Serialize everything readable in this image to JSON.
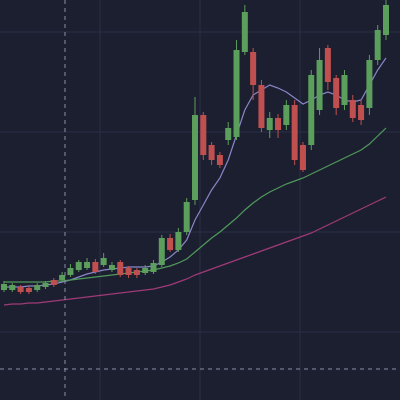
{
  "chart_data": {
    "type": "candlestick",
    "up_color": "#5c9e5c",
    "down_color": "#c0504f",
    "ylim": [
      0,
      400
    ],
    "categories": [
      null,
      null,
      null,
      null,
      null,
      null,
      null,
      null,
      null,
      null,
      null,
      null,
      null,
      null,
      null,
      null,
      null,
      null,
      null,
      null,
      null,
      null,
      null,
      null,
      null,
      null,
      null,
      null,
      null,
      null,
      null,
      null,
      null,
      null,
      null,
      null,
      null,
      null,
      null,
      null,
      null,
      null,
      null,
      null,
      null,
      null,
      null
    ],
    "open": [
      110,
      110,
      113,
      112,
      110,
      113,
      120,
      120,
      125,
      130,
      132,
      138,
      135,
      130,
      138,
      132,
      130,
      127,
      128,
      135,
      162,
      150,
      168,
      200,
      285,
      255,
      245,
      260,
      263,
      348,
      348,
      315,
      270,
      282,
      275,
      295,
      255,
      255,
      290,
      352,
      322,
      295,
      300,
      295,
      292,
      340,
      365
    ],
    "high": [
      119,
      117,
      115,
      114,
      117,
      119,
      122,
      128,
      136,
      140,
      142,
      141,
      147,
      138,
      140,
      134,
      132,
      135,
      140,
      165,
      166,
      172,
      202,
      303,
      288,
      258,
      248,
      278,
      360,
      395,
      352,
      320,
      288,
      286,
      300,
      300,
      258,
      330,
      352,
      355,
      325,
      330,
      305,
      300,
      345,
      375,
      400
    ],
    "low": [
      108,
      108,
      106,
      106,
      108,
      111,
      113,
      118,
      123,
      128,
      130,
      126,
      133,
      128,
      123,
      122,
      122,
      125,
      126,
      133,
      148,
      148,
      165,
      195,
      240,
      235,
      232,
      255,
      260,
      345,
      300,
      268,
      262,
      262,
      270,
      235,
      228,
      250,
      285,
      310,
      285,
      290,
      278,
      275,
      285,
      335,
      360
    ],
    "close": [
      116,
      115,
      108,
      108,
      115,
      117,
      115,
      125,
      132,
      138,
      138,
      128,
      142,
      135,
      125,
      125,
      125,
      132,
      137,
      162,
      150,
      168,
      198,
      285,
      245,
      240,
      235,
      272,
      350,
      388,
      315,
      272,
      282,
      270,
      295,
      240,
      230,
      325,
      340,
      318,
      292,
      325,
      282,
      280,
      340,
      370,
      395
    ],
    "lines": [
      {
        "color": "#8a86c8",
        "values": [
          113,
          113,
          113,
          114,
          114,
          115,
          116,
          118,
          120,
          123,
          126,
          128,
          130,
          131,
          132,
          133,
          133,
          133,
          134,
          138,
          143,
          150,
          160,
          180,
          195,
          210,
          222,
          240,
          265,
          290,
          305,
          310,
          315,
          312,
          308,
          302,
          296,
          300,
          305,
          308,
          305,
          300,
          298,
          300,
          315,
          330,
          342
        ]
      },
      {
        "color": "#4f9a5a",
        "values": [
          118,
          118,
          118,
          118,
          118,
          118,
          119,
          119,
          120,
          121,
          122,
          123,
          124,
          125,
          126,
          127,
          128,
          129,
          130,
          132,
          134,
          137,
          141,
          148,
          155,
          162,
          168,
          175,
          182,
          190,
          197,
          203,
          208,
          212,
          216,
          219,
          222,
          226,
          230,
          234,
          238,
          242,
          246,
          250,
          256,
          264,
          272
        ]
      },
      {
        "color": "#a03a78",
        "values": [
          95,
          96,
          96,
          97,
          97,
          98,
          99,
          100,
          101,
          102,
          103,
          104,
          105,
          106,
          107,
          108,
          109,
          110,
          111,
          113,
          115,
          118,
          121,
          125,
          128,
          131,
          134,
          137,
          140,
          143,
          146,
          149,
          152,
          155,
          158,
          161,
          164,
          167,
          171,
          175,
          179,
          183,
          187,
          191,
          195,
          199,
          203
        ]
      }
    ]
  }
}
